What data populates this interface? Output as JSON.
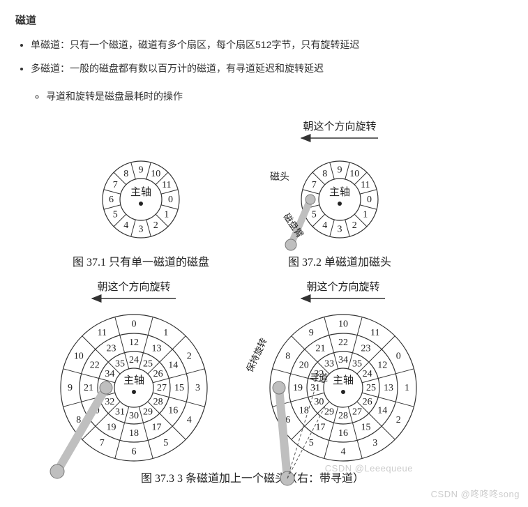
{
  "heading": "磁道",
  "bullets": {
    "b1_label": "单磁道：",
    "b1_text": "只有一个磁道，磁道有多个扇区，每个扇区512字节，只有旋转延迟",
    "b2_label": "多磁道：",
    "b2_text": "一般的磁盘都有数以百万计的磁道，有寻道延迟和旋转延迟",
    "b2_sub1": "寻道和旋转是磁盘最耗时的操作"
  },
  "labels": {
    "spindle": "主轴",
    "rotate_dir": "朝这个方向旋转",
    "head": "磁头",
    "arm": "磁盘臂",
    "keep_rotate": "保持旋转",
    "seek": "寻道"
  },
  "captions": {
    "c1": "图 37.1  只有单一磁道的磁盘",
    "c2": "图 37.2  单磁道加磁头",
    "c3": "图 37.3  3 条磁道加上一个磁头（右：带寻道）"
  },
  "disk": {
    "sector_font": 14,
    "spindle_font": 15,
    "track_color": "#333333",
    "arm_fill": "#bfbfbf",
    "sectors12": [
      "0",
      "1",
      "2",
      "3",
      "4",
      "5",
      "6",
      "7",
      "8",
      "9",
      "10",
      "11"
    ],
    "tracks3_outer": [
      "0",
      "1",
      "2",
      "3",
      "4",
      "5",
      "6",
      "7",
      "8",
      "9",
      "10",
      "11"
    ],
    "tracks3_mid": [
      "12",
      "13",
      "14",
      "15",
      "16",
      "17",
      "18",
      "19",
      "20",
      "21",
      "22",
      "23"
    ],
    "tracks3_inner": [
      "24",
      "25",
      "26",
      "27",
      "28",
      "29",
      "30",
      "31",
      "32",
      "33",
      "34",
      "35"
    ]
  },
  "watermark1": "CSDN @Leeequeue",
  "watermark2": "CSDN @咚咚咚song"
}
